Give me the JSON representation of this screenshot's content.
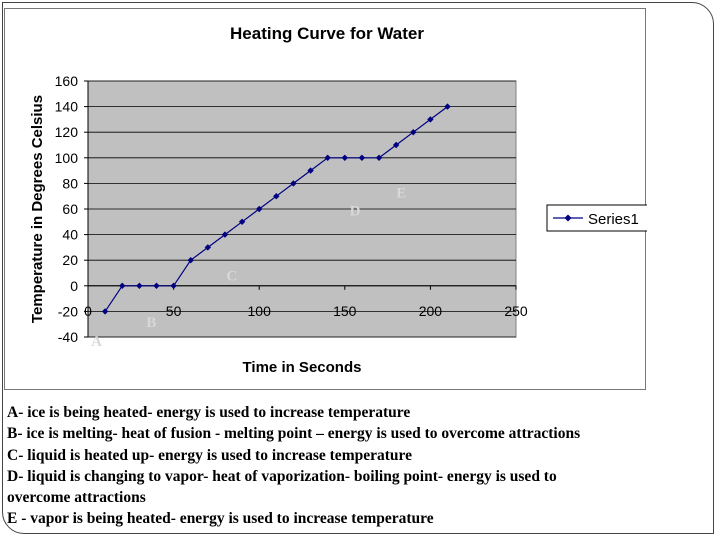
{
  "chart_data": {
    "type": "line",
    "title": "Heating Curve for Water",
    "xlabel": "Time in Seconds",
    "ylabel": "Temperature in Degrees Celsius",
    "xlim": [
      0,
      250
    ],
    "ylim": [
      -40,
      160
    ],
    "x_ticks": [
      0,
      50,
      100,
      150,
      200,
      250
    ],
    "y_ticks": [
      -40,
      -20,
      0,
      20,
      40,
      60,
      80,
      100,
      120,
      140,
      160
    ],
    "grid": true,
    "legend_position": "right",
    "series": [
      {
        "name": "Series1",
        "color": "#000080",
        "x": [
          10,
          20,
          30,
          40,
          50,
          60,
          70,
          80,
          90,
          100,
          110,
          120,
          130,
          140,
          150,
          160,
          170,
          180,
          190,
          200,
          210
        ],
        "y": [
          -20,
          0,
          0,
          0,
          0,
          20,
          30,
          40,
          50,
          60,
          70,
          80,
          90,
          100,
          100,
          100,
          100,
          110,
          120,
          130,
          140
        ]
      }
    ],
    "annotations": [
      {
        "text": "A",
        "x": 5,
        "y": -47
      },
      {
        "text": "B",
        "x": 37,
        "y": -32
      },
      {
        "text": "C",
        "x": 84,
        "y": 4
      },
      {
        "text": "D",
        "x": 156,
        "y": 55
      },
      {
        "text": "E",
        "x": 183,
        "y": 69
      }
    ]
  },
  "notes": [
    "A- ice is being heated- energy is used to increase temperature",
    "B- ice is melting- heat of fusion - melting point – energy is used to overcome attractions",
    "C- liquid is heated up- energy is used to increase temperature",
    "D- liquid is changing to vapor- heat of vaporization- boiling point- energy is used to",
    "overcome attractions",
    "E - vapor is being heated- energy is used to increase temperature"
  ],
  "colors": {
    "plot_background": "#c0c0c0",
    "series_line": "#000080",
    "annotation_text": "#d8d8d8"
  }
}
